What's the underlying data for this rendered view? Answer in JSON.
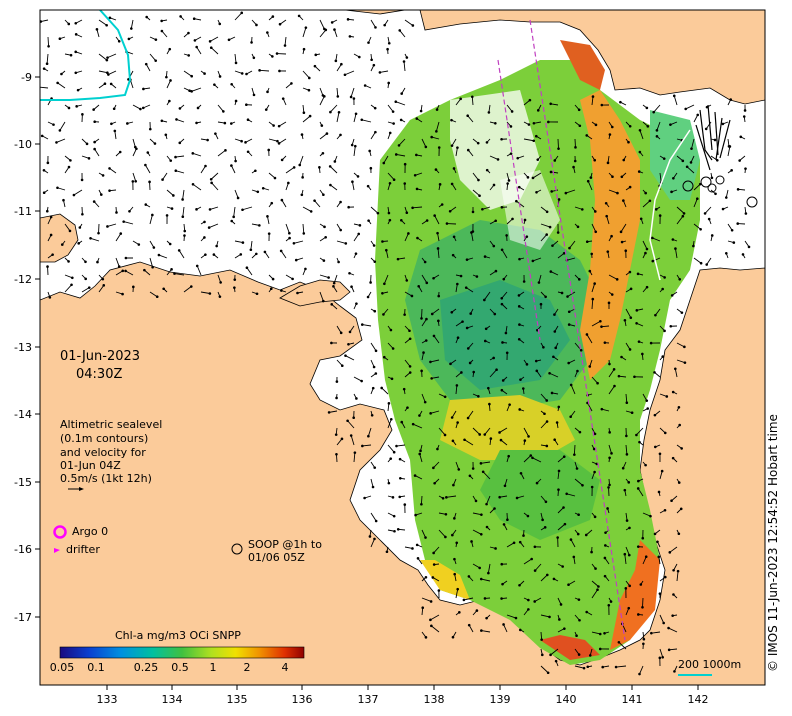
{
  "map": {
    "date": "01-Jun-2023",
    "time": "04:30Z",
    "legend_lines": [
      "Altimetric sealevel",
      "(0.1m contours)",
      "and velocity for",
      "01-Jun 04Z",
      "0.5m/s (1kt 12h)"
    ],
    "argo_label": "Argo 0",
    "drifter_label": "drifter",
    "soop_lines": [
      "SOOP @1h to",
      "01/06 05Z"
    ],
    "colorbar_title": "Chl-a mg/m3 OCi SNPP",
    "colorbar_ticks": [
      "0.05",
      "0.1",
      "0.25",
      "0.5",
      "1",
      "2",
      "4"
    ],
    "scale_label": "200  1000m",
    "credit": "© IMOS 11-Jun-2023 12:54:52 Hobart time",
    "x_ticks": [
      "133",
      "134",
      "135",
      "136",
      "137",
      "138",
      "139",
      "140",
      "141",
      "142"
    ],
    "y_ticks": [
      "-9",
      "-10",
      "-11",
      "-12",
      "-13",
      "-14",
      "-15",
      "-16",
      "-17"
    ],
    "colors": {
      "land": "#fbcb9a",
      "ocean": "#ffffff",
      "argo": "#ff00ff",
      "trackline": "#c040c0",
      "contour": "#00d0d0"
    }
  }
}
